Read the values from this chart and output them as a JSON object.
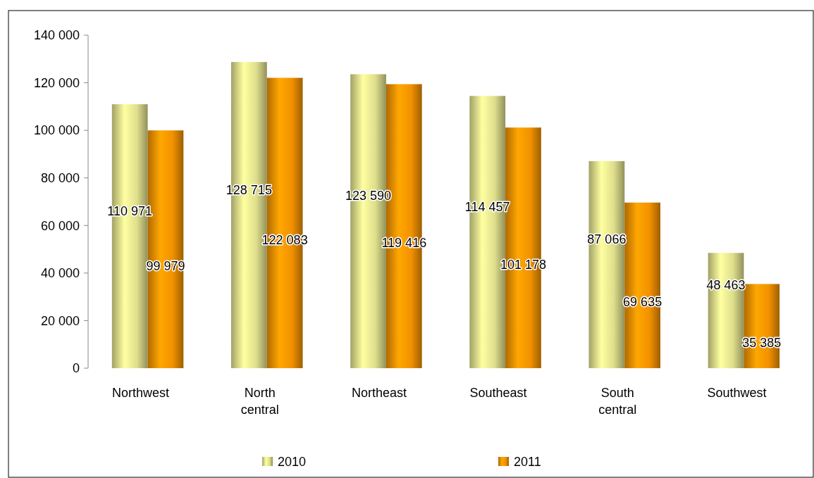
{
  "chart_data": {
    "type": "bar",
    "categories": [
      "Northwest",
      "North central",
      "Northeast",
      "Southeast",
      "South central",
      "Southwest"
    ],
    "series": [
      {
        "name": "2010",
        "color": "#dede8c",
        "values": [
          110971,
          128715,
          123590,
          114457,
          87066,
          48463
        ],
        "value_labels": [
          "110 971",
          "128 715",
          "123 590",
          "114 457",
          "87 066",
          "48 463"
        ]
      },
      {
        "name": "2011",
        "color": "#f29100",
        "values": [
          99979,
          122083,
          119416,
          101178,
          69635,
          35385
        ],
        "value_labels": [
          "99 979",
          "122 083",
          "119 416",
          "101 178",
          "69 635",
          "35 385"
        ]
      }
    ],
    "ylim": [
      0,
      140000
    ],
    "yticks": [
      {
        "value": 0,
        "label": "0"
      },
      {
        "value": 20000,
        "label": "20 000"
      },
      {
        "value": 40000,
        "label": "40 000"
      },
      {
        "value": 60000,
        "label": "60 000"
      },
      {
        "value": 80000,
        "label": "80 000"
      },
      {
        "value": 100000,
        "label": "100 000"
      },
      {
        "value": 120000,
        "label": "120 000"
      },
      {
        "value": 140000,
        "label": "140 000"
      }
    ],
    "grid": false,
    "legend": "bottom"
  }
}
